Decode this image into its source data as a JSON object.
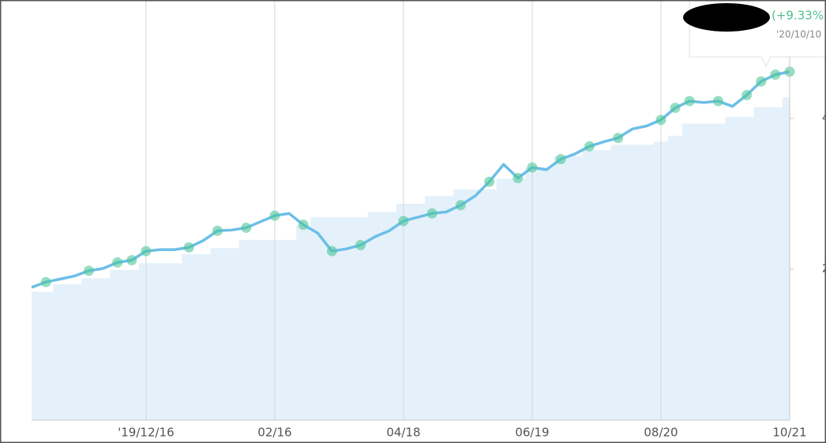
{
  "chart_data": {
    "type": "line",
    "categories": [
      null,
      null,
      null,
      null,
      null,
      null,
      null,
      null,
      "'19/12/16",
      null,
      null,
      null,
      null,
      null,
      null,
      null,
      null,
      "02/16",
      null,
      null,
      null,
      null,
      null,
      null,
      null,
      null,
      "04/18",
      null,
      null,
      null,
      null,
      null,
      null,
      null,
      null,
      "06/19",
      null,
      null,
      null,
      null,
      null,
      null,
      null,
      null,
      "08/20",
      null,
      null,
      null,
      null,
      null,
      null,
      null,
      null,
      "10/21"
    ],
    "series": [
      {
        "color": "#6cbfe8",
        "values": [
          1.76,
          1.83,
          1.87,
          1.91,
          1.98,
          2.01,
          2.09,
          2.12,
          2.24,
          2.26,
          2.26,
          2.29,
          2.38,
          2.51,
          2.52,
          2.55,
          2.63,
          2.71,
          2.74,
          2.59,
          2.48,
          2.24,
          2.27,
          2.32,
          2.43,
          2.51,
          2.64,
          2.69,
          2.74,
          2.76,
          2.85,
          2.97,
          3.16,
          3.39,
          3.21,
          3.35,
          3.32,
          3.46,
          3.53,
          3.63,
          3.69,
          3.74,
          3.86,
          3.9,
          3.98,
          4.14,
          4.23,
          4.21,
          4.23,
          4.16,
          4.31,
          4.49,
          4.58,
          4.62
        ]
      },
      {
        "color": "#e4f1fa",
        "values": [
          1.7,
          1.7,
          1.8,
          1.8,
          1.88,
          1.88,
          1.99,
          1.99,
          2.08,
          2.08,
          2.08,
          2.2,
          2.2,
          2.28,
          2.28,
          2.39,
          2.39,
          2.39,
          2.39,
          2.58,
          2.69,
          2.69,
          2.69,
          2.69,
          2.76,
          2.76,
          2.87,
          2.87,
          2.97,
          2.97,
          3.06,
          3.06,
          3.06,
          3.2,
          3.2,
          3.35,
          3.35,
          3.5,
          3.5,
          3.58,
          3.58,
          3.65,
          3.65,
          3.65,
          3.69,
          3.77,
          3.93,
          3.93,
          3.93,
          4.02,
          4.02,
          4.15,
          4.15,
          4.28
        ]
      },
      {
        "color": "#4fc79a",
        "values": [
          null,
          1.83,
          null,
          null,
          1.98,
          null,
          2.09,
          2.12,
          2.24,
          null,
          null,
          2.29,
          null,
          2.51,
          null,
          2.55,
          null,
          2.71,
          null,
          2.59,
          null,
          2.24,
          null,
          2.32,
          null,
          null,
          2.64,
          null,
          2.74,
          null,
          2.85,
          null,
          3.16,
          null,
          3.21,
          3.35,
          null,
          3.46,
          null,
          3.63,
          null,
          3.74,
          null,
          null,
          3.98,
          4.14,
          4.23,
          null,
          4.23,
          null,
          4.31,
          4.49,
          4.58,
          4.62
        ]
      }
    ],
    "ylim": [
      0,
      5.57
    ],
    "yticks": [
      2,
      4
    ],
    "grid": true,
    "tooltip": {
      "change": "(+9.33%)",
      "date": "'20/10/10"
    }
  }
}
